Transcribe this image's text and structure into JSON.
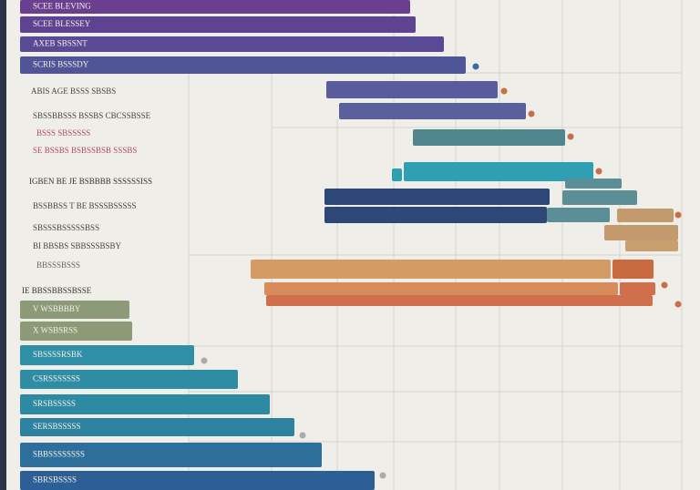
{
  "bar_labels": [
    "SCEE BLEVING",
    "SCEE BLESSEY",
    "AXEB SBSSNT",
    "SCRIS BSSSDY",
    "V WSBBBBY",
    "X WSBSRSS",
    "SBSSSSRSBK",
    "CSRSSSSSSS",
    "SRSBSSSSS",
    "SERSBSSSSS",
    "SBBSSSSSSSS",
    "SBRSBSSSS"
  ],
  "side_labels": [
    "ABIS AGE BSSS SBSBS",
    "SBSSBBSSS BSSBS CBCSSBSSE",
    "BSSS SBSSSSS",
    "SE BSSBS BSBSSBSB SSSBS",
    "IGBEN BE JE BSBBBB SSSSSSISS",
    "BSSBBSS T BE BSSSBSSSSS",
    "SBSSSBSSSSSBSS",
    "BI BBSBS SBBSSSBSBY",
    "BBSSSBSSS",
    "IE BBSSBBSSBSSE"
  ]
}
